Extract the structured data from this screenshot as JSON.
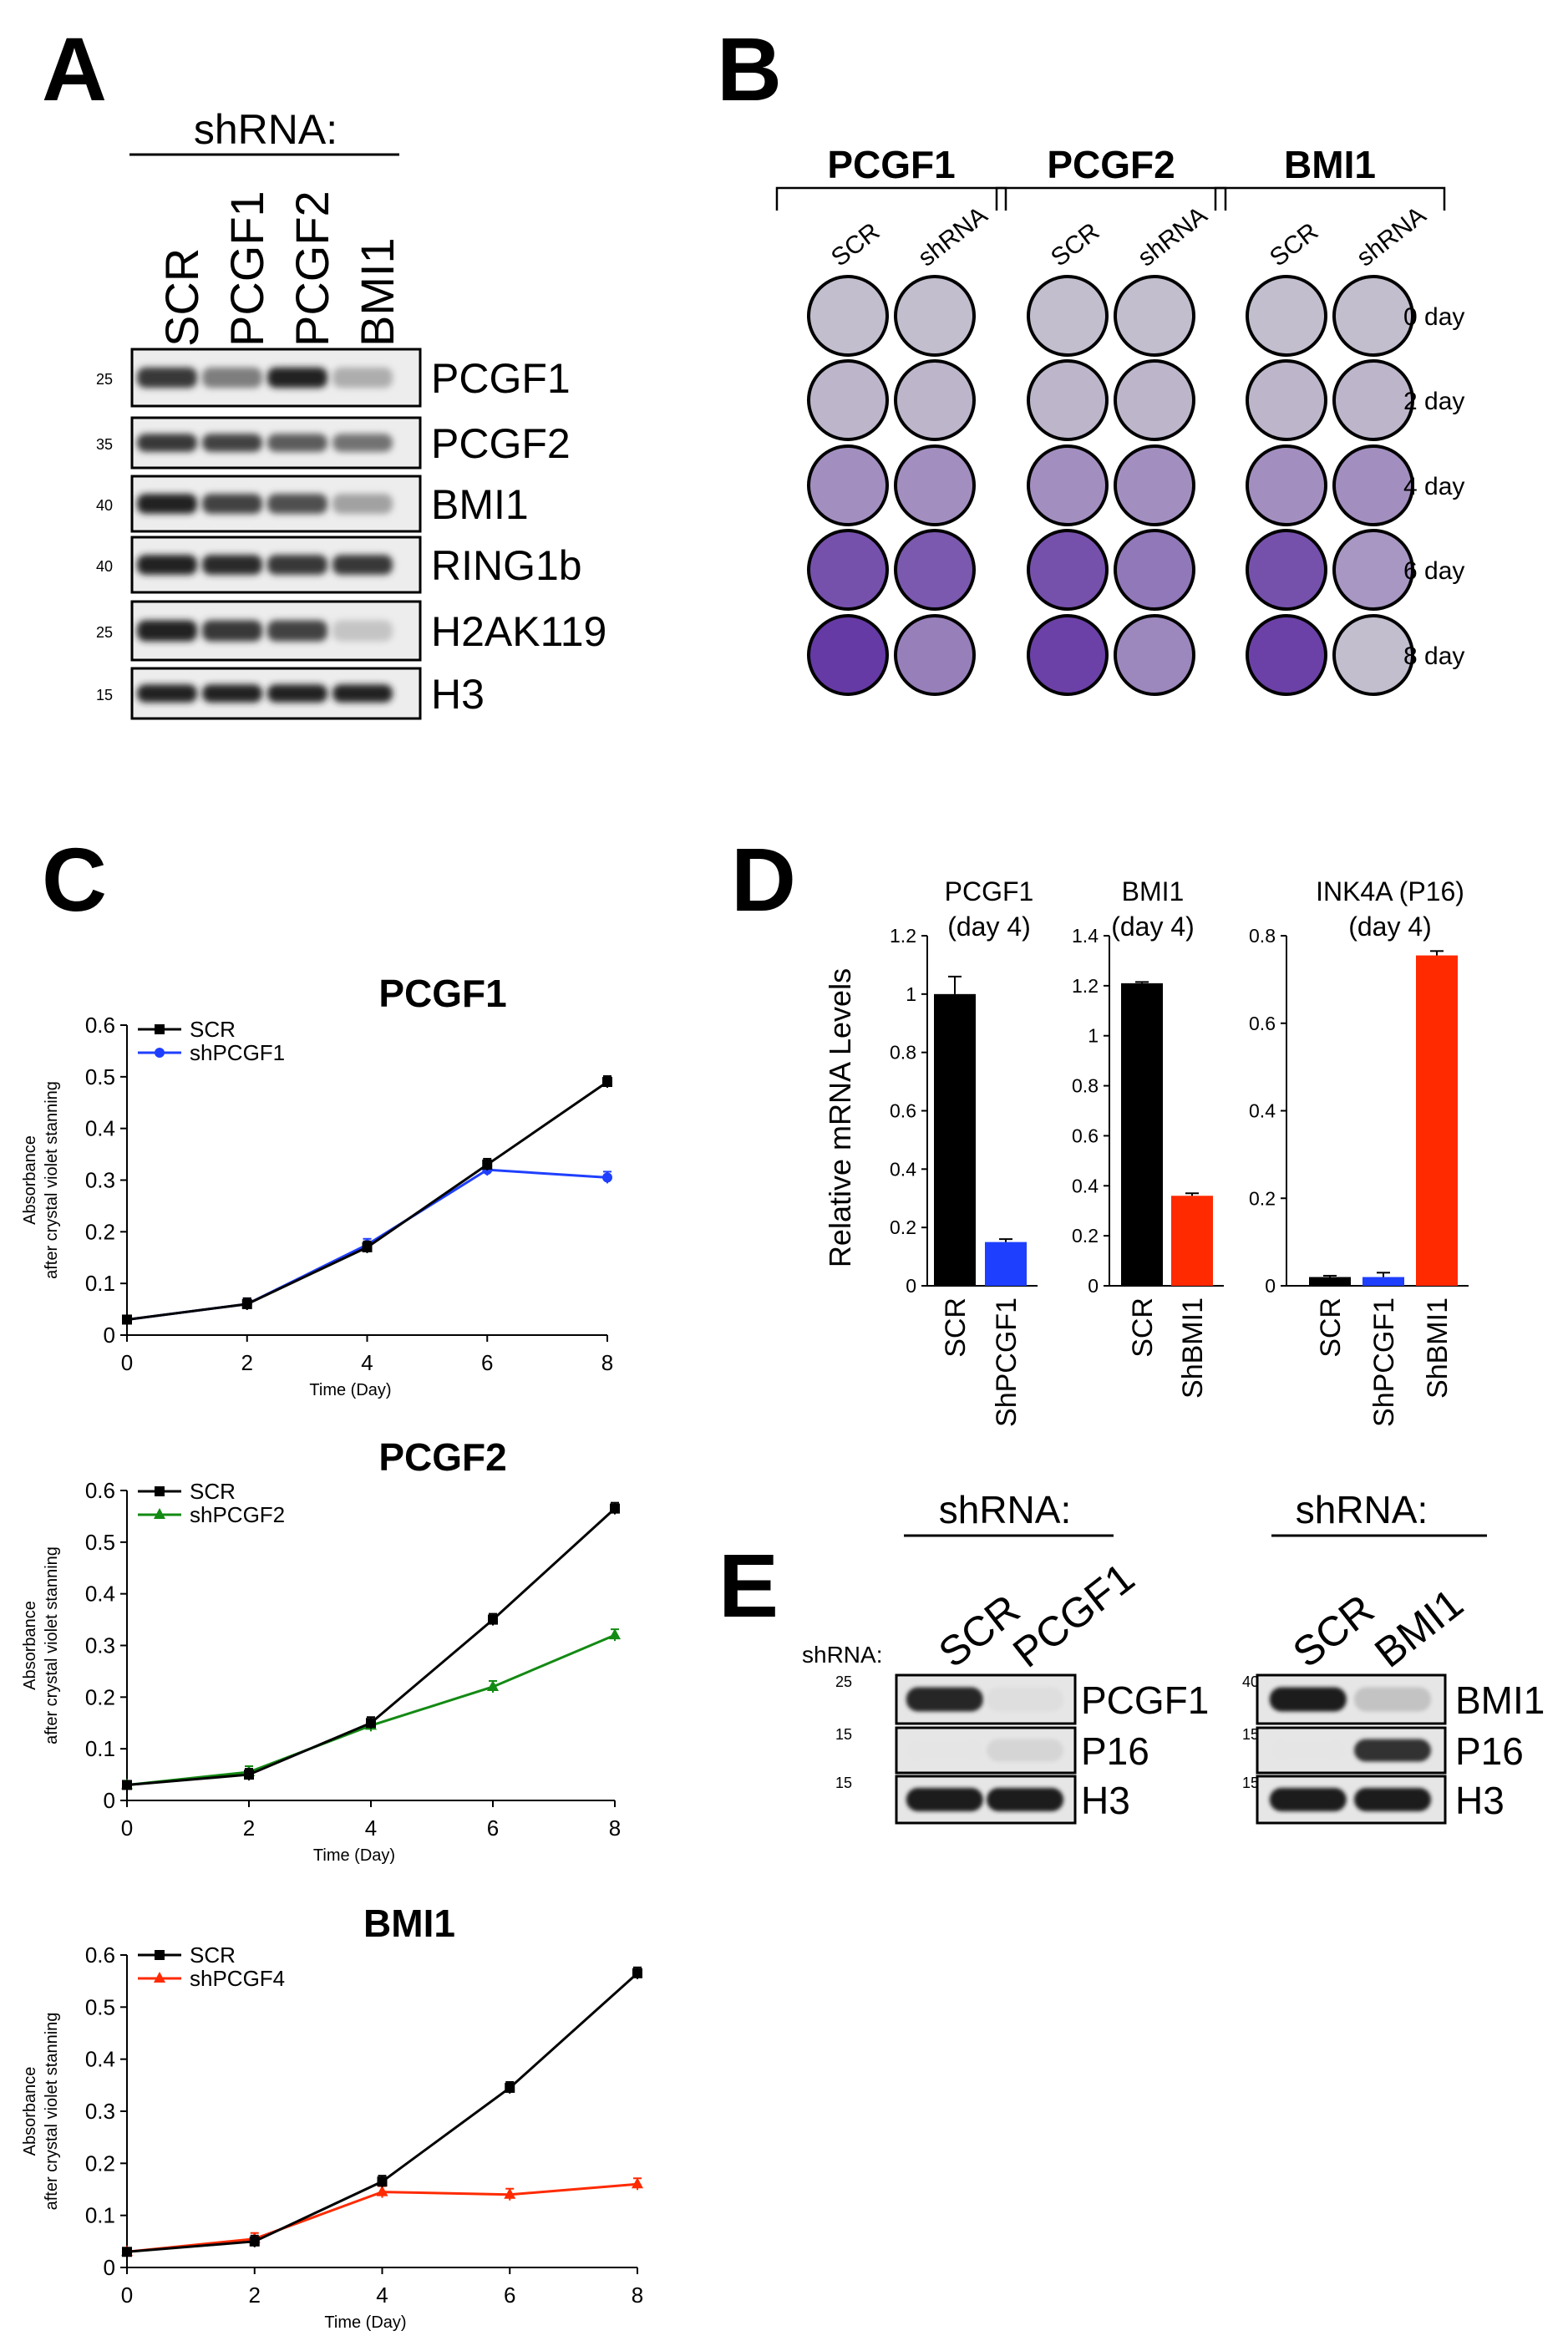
{
  "panels": {
    "A": "A",
    "B": "B",
    "C": "C",
    "D": "D",
    "E": "E"
  },
  "colors": {
    "scr": "#000000",
    "blue": "#1f3fff",
    "green": "#138a13",
    "red": "#ff2a00",
    "plate_dark": "#5a2aa0",
    "plate_light": "#b8b4c2"
  },
  "panelA": {
    "header": "shRNA:",
    "lanes": [
      "SCR",
      "PCGF1",
      "PCGF2",
      "BMI1"
    ],
    "blots": [
      {
        "label": "PCGF1",
        "mw": "25",
        "intensity": [
          0.85,
          0.55,
          0.95,
          0.35
        ]
      },
      {
        "label": "PCGF2",
        "mw": "35",
        "intensity": [
          0.85,
          0.8,
          0.7,
          0.6
        ]
      },
      {
        "label": "BMI1",
        "mw": "40",
        "intensity": [
          0.95,
          0.8,
          0.75,
          0.4
        ]
      },
      {
        "label": "RING1b",
        "mw": "40",
        "intensity": [
          0.95,
          0.9,
          0.85,
          0.85
        ]
      },
      {
        "label": "H2AK119",
        "mw": "25",
        "intensity": [
          0.95,
          0.85,
          0.8,
          0.25
        ]
      },
      {
        "label": "H3",
        "mw": "15",
        "intensity": [
          0.95,
          0.95,
          0.95,
          0.95
        ]
      }
    ]
  },
  "panelB": {
    "groups": [
      {
        "title": "PCGF1",
        "cols": [
          "SCR",
          "shRNA"
        ],
        "density": [
          [
            0.05,
            0.05
          ],
          [
            0.1,
            0.1
          ],
          [
            0.35,
            0.35
          ],
          [
            0.75,
            0.7
          ],
          [
            0.9,
            0.45
          ]
        ]
      },
      {
        "title": "PCGF2",
        "cols": [
          "SCR",
          "shRNA"
        ],
        "density": [
          [
            0.05,
            0.05
          ],
          [
            0.1,
            0.1
          ],
          [
            0.35,
            0.35
          ],
          [
            0.75,
            0.5
          ],
          [
            0.85,
            0.4
          ]
        ]
      },
      {
        "title": "BMI1",
        "cols": [
          "SCR",
          "shRNA"
        ],
        "density": [
          [
            0.05,
            0.05
          ],
          [
            0.1,
            0.1
          ],
          [
            0.35,
            0.35
          ],
          [
            0.75,
            0.3
          ],
          [
            0.85,
            0.05
          ]
        ]
      }
    ],
    "days": [
      "0 day",
      "2 day",
      "4 day",
      "6 day",
      "8 day"
    ]
  },
  "chart_data": [
    {
      "type": "line",
      "title": "PCGF1",
      "xlabel": "Time (Day)",
      "ylabel": "Absorbance",
      "ylabel2": "after crystal violet stanning",
      "x": [
        0,
        2,
        4,
        6,
        8
      ],
      "xlim": [
        0,
        8
      ],
      "ylim": [
        0,
        0.6
      ],
      "xticks": [
        "0",
        "2",
        "4",
        "6",
        "8"
      ],
      "yticks": [
        "0",
        "0.1",
        "0.2",
        "0.3",
        "0.4",
        "0.5",
        "0.6"
      ],
      "series": [
        {
          "name": "SCR",
          "marker": "square",
          "values": [
            0.03,
            0.06,
            0.17,
            0.33,
            0.49
          ]
        },
        {
          "name": "shPCGF1",
          "marker": "circle",
          "values": [
            0.03,
            0.06,
            0.175,
            0.32,
            0.305
          ]
        }
      ]
    },
    {
      "type": "line",
      "title": "PCGF2",
      "xlabel": "Time (Day)",
      "ylabel": "Absorbance",
      "ylabel2": "after crystal violet stanning",
      "x": [
        0,
        2,
        4,
        6,
        8
      ],
      "xlim": [
        0,
        8
      ],
      "ylim": [
        0,
        0.6
      ],
      "xticks": [
        "0",
        "2",
        "4",
        "6",
        "8"
      ],
      "yticks": [
        "0",
        "0.1",
        "0.2",
        "0.3",
        "0.4",
        "0.5",
        "0.6"
      ],
      "series": [
        {
          "name": "SCR",
          "marker": "square",
          "values": [
            0.03,
            0.05,
            0.15,
            0.35,
            0.565
          ]
        },
        {
          "name": "shPCGF2",
          "marker": "triangle",
          "values": [
            0.03,
            0.055,
            0.145,
            0.22,
            0.32
          ]
        }
      ]
    },
    {
      "type": "line",
      "title": "BMI1",
      "xlabel": "Time (Day)",
      "ylabel": "Absorbance",
      "ylabel2": "after crystal violet stanning",
      "x": [
        0,
        2,
        4,
        6,
        8
      ],
      "xlim": [
        0,
        8
      ],
      "ylim": [
        0,
        0.6
      ],
      "xticks": [
        "0",
        "2",
        "4",
        "6",
        "8"
      ],
      "yticks": [
        "0",
        "0.1",
        "0.2",
        "0.3",
        "0.4",
        "0.5",
        "0.6"
      ],
      "series": [
        {
          "name": "SCR",
          "marker": "square",
          "values": [
            0.03,
            0.05,
            0.165,
            0.345,
            0.565
          ]
        },
        {
          "name": "shPCGF4",
          "marker": "triangle",
          "values": [
            0.03,
            0.055,
            0.145,
            0.14,
            0.16
          ]
        }
      ]
    },
    {
      "type": "bar",
      "title": "PCGF1",
      "title2": "(day 4)",
      "ylabel": "Relative mRNA Levels",
      "ylim": [
        0,
        1.2
      ],
      "yticks": [
        "0",
        "0.2",
        "0.4",
        "0.6",
        "0.8",
        "1",
        "1.2"
      ],
      "categories": [
        "SCR",
        "ShPCGF1"
      ],
      "values": [
        1.0,
        0.15
      ],
      "errors": [
        0.06,
        0.01
      ]
    },
    {
      "type": "bar",
      "title": "BMI1",
      "title2": "(day 4)",
      "ylim": [
        0,
        1.4
      ],
      "yticks": [
        "0",
        "0.2",
        "0.4",
        "0.6",
        "0.8",
        "1",
        "1.2",
        "1.4"
      ],
      "categories": [
        "SCR",
        "ShBMI1"
      ],
      "values": [
        1.21,
        0.36
      ],
      "errors": [
        0.005,
        0.01
      ]
    },
    {
      "type": "bar",
      "title": "INK4A (P16)",
      "title2": "(day 4)",
      "ylim": [
        0,
        0.8
      ],
      "yticks": [
        "0",
        "0.2",
        "0.4",
        "0.6",
        "0.8"
      ],
      "categories": [
        "SCR",
        "ShPCGF1",
        "ShBMI1"
      ],
      "values": [
        0.02,
        0.02,
        0.755
      ],
      "errors": [
        0.003,
        0.01,
        0.01
      ]
    }
  ],
  "panelE": {
    "left": {
      "header": "shRNA:",
      "side_label": "shRNA:",
      "lanes": [
        "SCR",
        "PCGF1"
      ],
      "blots": [
        {
          "label": "PCGF1",
          "mw": "25",
          "intensity": [
            0.9,
            0.08
          ]
        },
        {
          "label": "P16",
          "mw": "15",
          "intensity": [
            0.05,
            0.12
          ]
        },
        {
          "label": "H3",
          "mw": "15",
          "intensity": [
            0.95,
            0.95
          ]
        }
      ]
    },
    "right": {
      "header": "shRNA:",
      "lanes": [
        "SCR",
        "BMI1"
      ],
      "blots": [
        {
          "label": "BMI1",
          "mw": "40",
          "intensity": [
            0.95,
            0.2
          ]
        },
        {
          "label": "P16",
          "mw": "15",
          "intensity": [
            0.05,
            0.85
          ]
        },
        {
          "label": "H3",
          "mw": "15",
          "intensity": [
            0.95,
            0.95
          ]
        }
      ]
    }
  }
}
